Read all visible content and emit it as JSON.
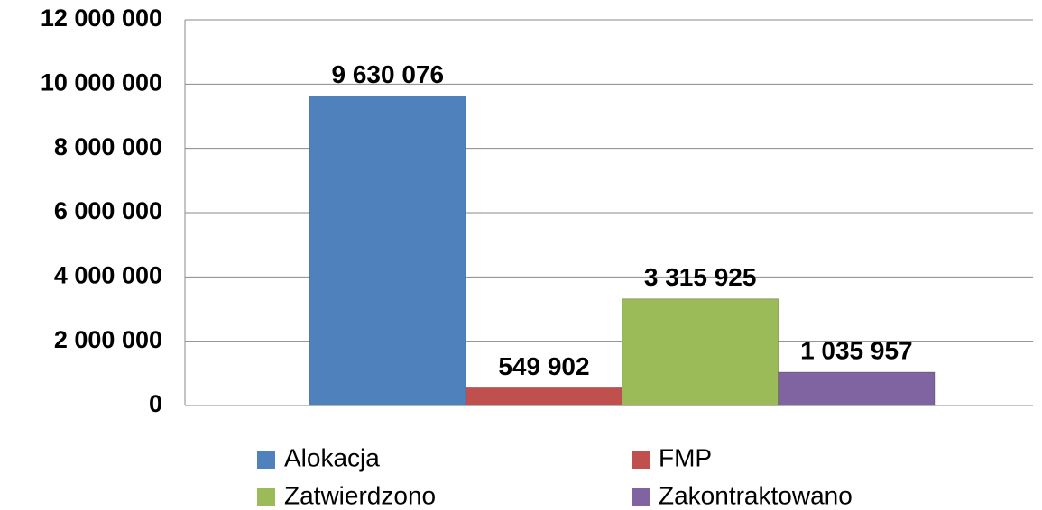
{
  "chart_data": {
    "type": "bar",
    "categories": [
      null
    ],
    "series": [
      {
        "name": "Alokacja",
        "color": "#4f81bd",
        "values": [
          9630076
        ],
        "value_labels": [
          "9 630 076"
        ]
      },
      {
        "name": "FMP",
        "color": "#c0504d",
        "values": [
          549902
        ],
        "value_labels": [
          "549 902"
        ]
      },
      {
        "name": "Zatwierdzono",
        "color": "#9bbb59",
        "values": [
          3315925
        ],
        "value_labels": [
          "3 315 925"
        ]
      },
      {
        "name": "Zakontraktowano",
        "color": "#8064a2",
        "values": [
          1035957
        ],
        "value_labels": [
          "1 035 957"
        ]
      }
    ],
    "ylim": [
      0,
      12000000
    ],
    "yticks": [
      0,
      {
        "value": 2000000,
        "label": "2 000 000"
      },
      {
        "value": 4000000,
        "label": "4 000 000"
      },
      {
        "value": 6000000,
        "label": "6 000 000"
      },
      {
        "value": 8000000,
        "label": "8 000 000"
      },
      {
        "value": 10000000,
        "label": "10 000 000"
      },
      {
        "value": 12000000,
        "label": "12 000 000"
      }
    ],
    "grid": true,
    "legend": "bottom"
  }
}
